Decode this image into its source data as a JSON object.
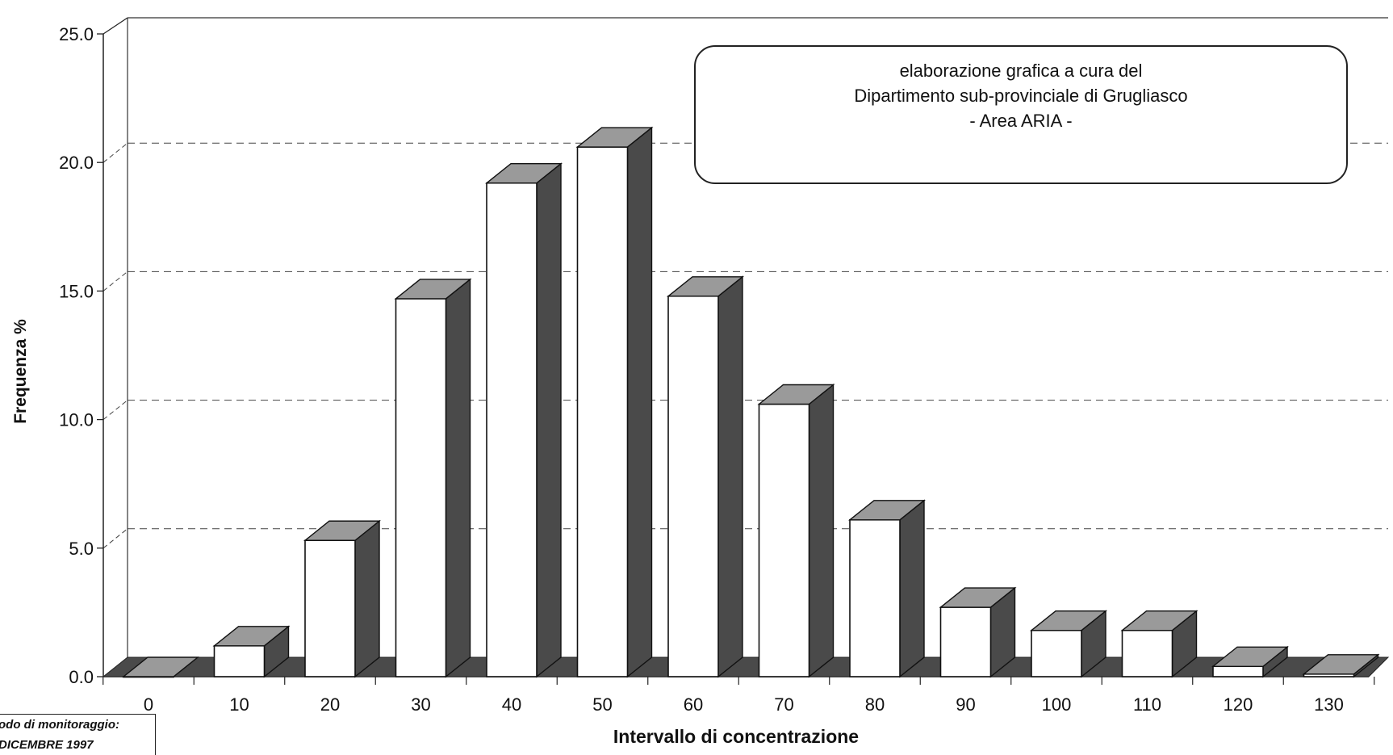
{
  "chart_data": {
    "type": "bar",
    "style": "3d-column",
    "categories": [
      "0",
      "10",
      "20",
      "30",
      "40",
      "50",
      "60",
      "70",
      "80",
      "90",
      "100",
      "110",
      "120",
      "130"
    ],
    "values": [
      0.0,
      1.2,
      5.3,
      14.7,
      19.2,
      20.6,
      14.8,
      10.6,
      6.1,
      2.7,
      1.8,
      1.8,
      0.4,
      0.1
    ],
    "xlabel": "Intervallo di concentrazione",
    "ylabel": "Frequenza %",
    "ylim": [
      0,
      25
    ],
    "yticks": [
      "0.0",
      "5.0",
      "10.0",
      "15.0",
      "20.0",
      "25.0"
    ],
    "grid": "dashed horizontal",
    "bar_front_color": "#ffffff",
    "bar_side_color": "#4a4a4a",
    "bar_top_color": "#9a9a9a"
  },
  "annotation": {
    "line1": "elaborazione grafica a cura del",
    "line2": "Dipartimento sub-provinciale di Grugliasco",
    "line3": "- Area ARIA -"
  },
  "period_note": {
    "line1": "odo di monitoraggio:",
    "line2": "DICEMBRE 1997"
  }
}
